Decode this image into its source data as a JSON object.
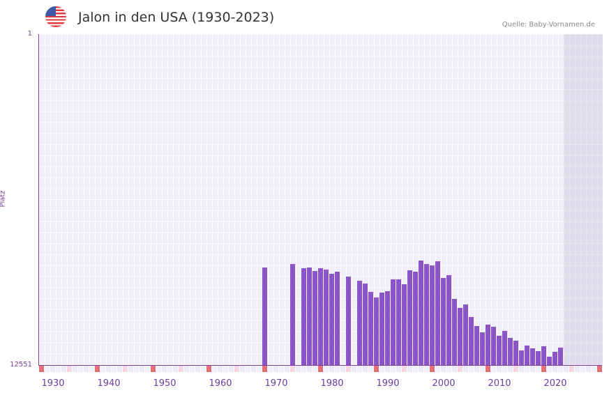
{
  "header": {
    "title": "Jalon in den USA (1930-2023)",
    "source": "Quelle: Baby-Vornamen.de",
    "flag_icon": "us-flag-icon"
  },
  "colors": {
    "bar": "#8b55c7",
    "axis": "#7a3fa0",
    "decade_mark": "#e07178",
    "halfdecade_mark": "#f5d6e0",
    "plot_bg": "#f1eefb"
  },
  "chart_data": {
    "type": "bar",
    "title": "Jalon in den USA (1930-2023)",
    "xlabel": "",
    "ylabel": "Platz",
    "ylim": [
      12551,
      1
    ],
    "y_inverted": true,
    "yticks": [
      "1",
      "12551"
    ],
    "xticks": [
      "1930",
      "1940",
      "1950",
      "1960",
      "1970",
      "1980",
      "1990",
      "2000",
      "2010",
      "2020"
    ],
    "x_range": [
      1928,
      2028
    ],
    "grid": true,
    "categories": [
      1968,
      1973,
      1975,
      1976,
      1977,
      1978,
      1979,
      1980,
      1981,
      1983,
      1985,
      1986,
      1987,
      1988,
      1989,
      1990,
      1991,
      1992,
      1993,
      1994,
      1995,
      1996,
      1997,
      1998,
      1999,
      2000,
      2001,
      2002,
      2003,
      2004,
      2005,
      2006,
      2007,
      2008,
      2009,
      2010,
      2011,
      2012,
      2013,
      2014,
      2015,
      2016,
      2017,
      2018,
      2019,
      2020,
      2021
    ],
    "values": [
      8840,
      8710,
      8870,
      8840,
      8990,
      8890,
      8920,
      9100,
      9000,
      9200,
      9350,
      9450,
      9780,
      9990,
      9800,
      9760,
      9310,
      9290,
      9480,
      8960,
      9010,
      8600,
      8720,
      8760,
      8620,
      9250,
      9130,
      10050,
      10390,
      10260,
      10740,
      11060,
      11320,
      11030,
      11110,
      11430,
      11250,
      11530,
      11620,
      12000,
      11800,
      11910,
      12020,
      11830,
      12230,
      12040,
      11880
    ]
  },
  "axes": {
    "ylabel": "Platz",
    "ytick_top": "1",
    "ytick_bottom": "12551"
  }
}
